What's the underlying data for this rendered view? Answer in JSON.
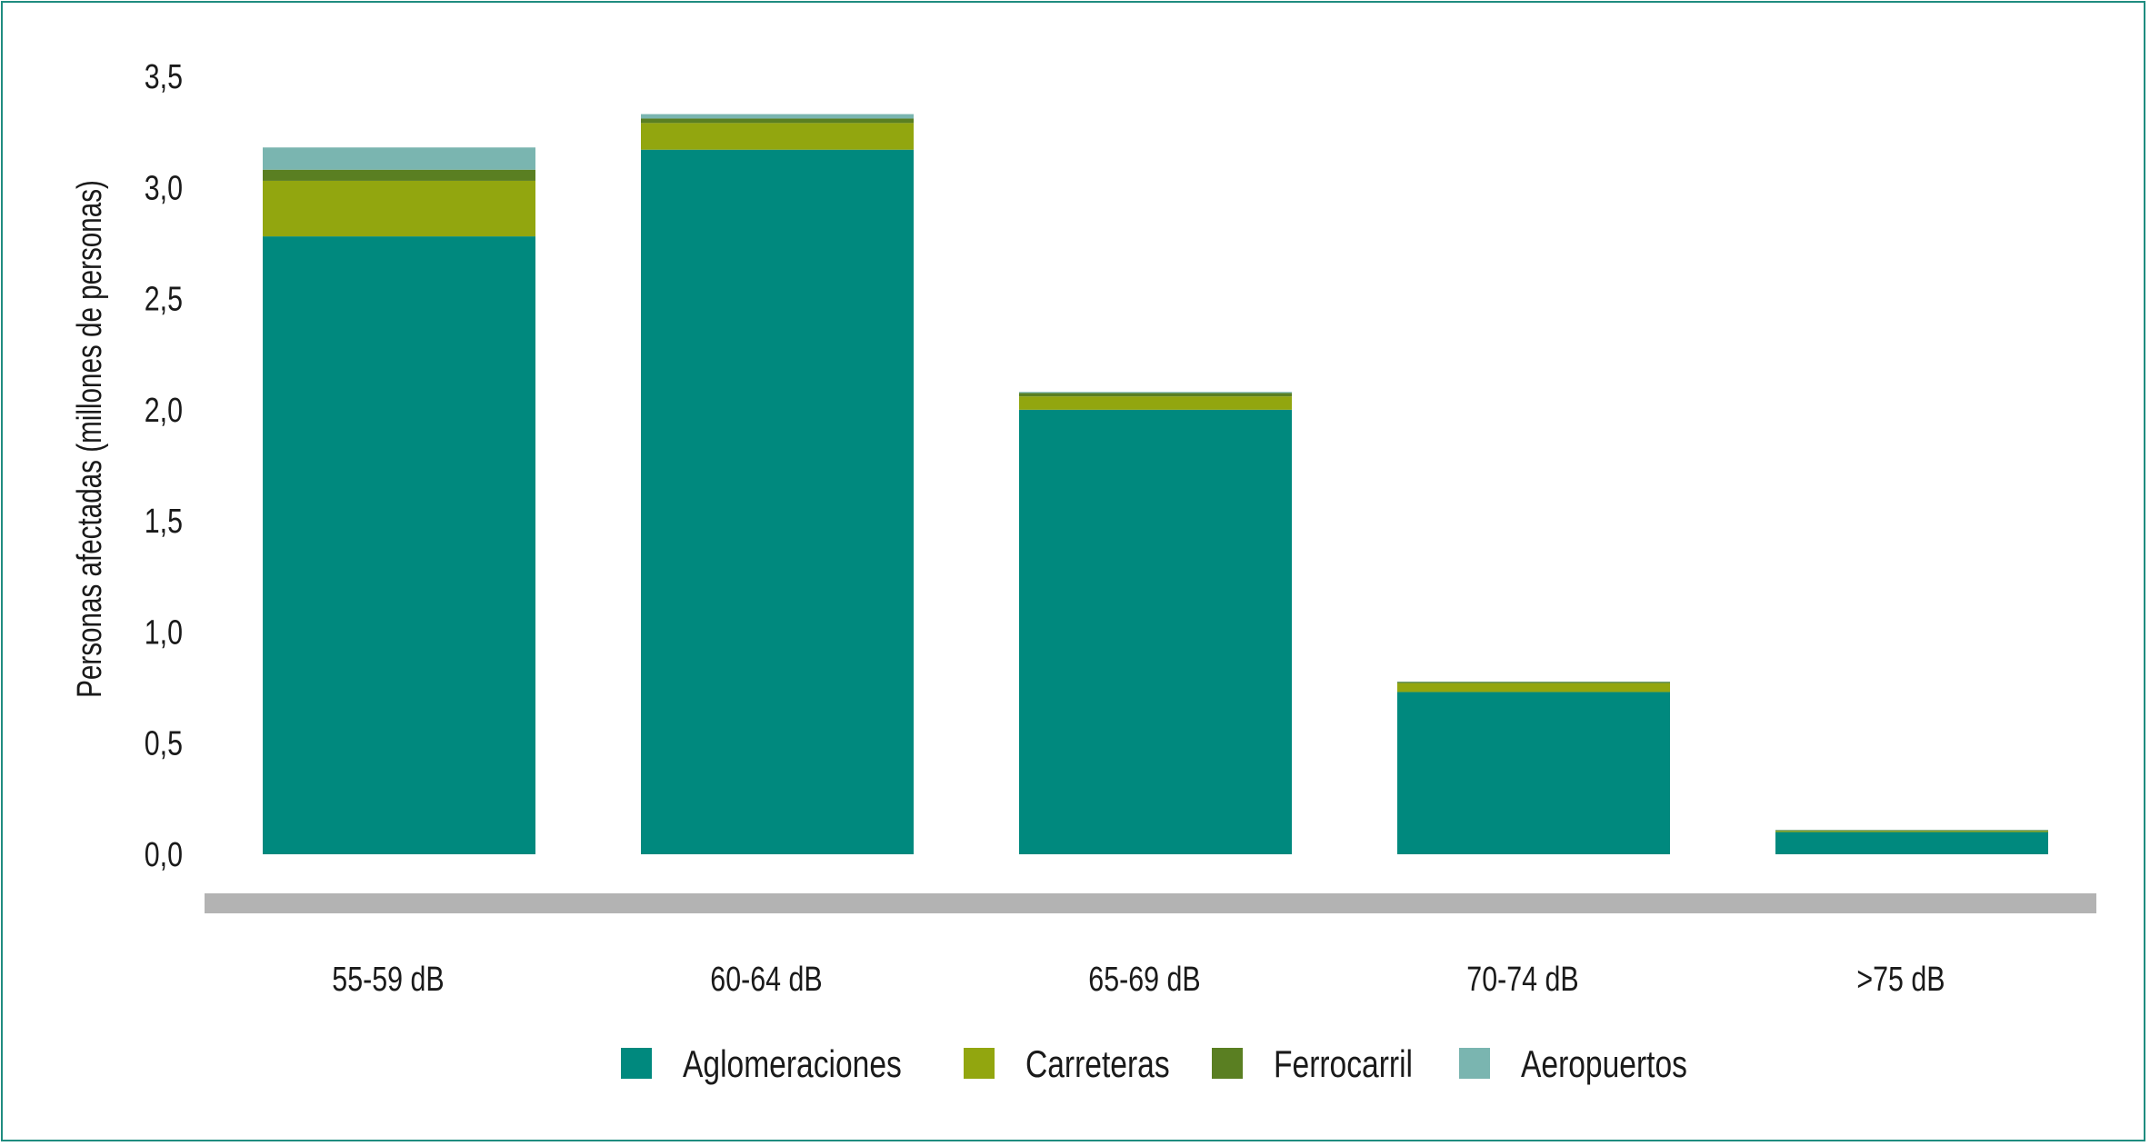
{
  "chart_data": {
    "type": "bar",
    "stacked": true,
    "categories": [
      "55-59 dB",
      "60-64 dB",
      "65-69 dB",
      "70-74 dB",
      ">75 dB"
    ],
    "series": [
      {
        "name": "Aglomeraciones",
        "color": "#00897e",
        "values": [
          2.78,
          3.17,
          2.0,
          0.73,
          0.1
        ]
      },
      {
        "name": "Carreteras",
        "color": "#92a60f",
        "values": [
          0.25,
          0.12,
          0.06,
          0.04,
          0.005
        ]
      },
      {
        "name": "Ferrocarril",
        "color": "#5a7f22",
        "values": [
          0.05,
          0.02,
          0.015,
          0.005,
          0.003
        ]
      },
      {
        "name": "Aeropuertos",
        "color": "#7ab5b0",
        "values": [
          0.1,
          0.02,
          0.005,
          0.002,
          0.002
        ]
      }
    ],
    "ylabel": "Personas afectadas (millones de personas)",
    "ylim": [
      0,
      3.5
    ],
    "yticks": [
      "0,0",
      "0,5",
      "1,0",
      "1,5",
      "2,0",
      "2,5",
      "3,0",
      "3,5"
    ],
    "grid": false,
    "legend": "bottom",
    "baseline_color": "#b3b3b3"
  }
}
